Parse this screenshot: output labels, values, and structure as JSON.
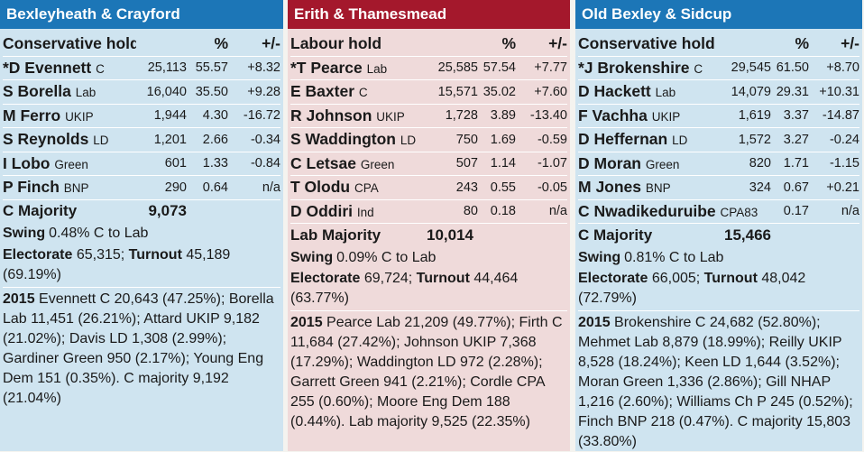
{
  "constituencies": [
    {
      "name": "Bexleyheath & Crayford",
      "hold": "Conservative hold",
      "pct_header": "%",
      "change_header": "+/-",
      "candidates": [
        {
          "name": "*D Evennett",
          "party": "C",
          "votes": "25,113",
          "pct": "55.57",
          "change": "+8.32"
        },
        {
          "name": "S Borella",
          "party": "Lab",
          "votes": "16,040",
          "pct": "35.50",
          "change": "+9.28"
        },
        {
          "name": "M Ferro",
          "party": "UKIP",
          "votes": "1,944",
          "pct": "4.30",
          "change": "-16.72"
        },
        {
          "name": "S Reynolds",
          "party": "LD",
          "votes": "1,201",
          "pct": "2.66",
          "change": "-0.34"
        },
        {
          "name": "I Lobo",
          "party": "Green",
          "votes": "601",
          "pct": "1.33",
          "change": "-0.84"
        },
        {
          "name": "P Finch",
          "party": "BNP",
          "votes": "290",
          "pct": "0.64",
          "change": "n/a"
        }
      ],
      "majority_label": "C Majority",
      "majority_value": "9,073",
      "swing_label": "Swing",
      "swing_value": "0.48% C to Lab",
      "electorate_label": "Electorate",
      "electorate_value": "65,315;",
      "turnout_label": "Turnout",
      "turnout_value": "45,189 (69.19%)",
      "prev_year": "2015",
      "prev_text": "Evennett C 20,643 (47.25%); Borella Lab 11,451 (26.21%); Attard UKIP 9,182 (21.02%); Davis LD 1,308 (2.99%); Gardiner Green 950 (2.17%); Young Eng Dem 151 (0.35%). C majority 9,192 (21.04%)"
    },
    {
      "name": "Erith & Thamesmead",
      "hold": "Labour hold",
      "pct_header": "%",
      "change_header": "+/-",
      "candidates": [
        {
          "name": "*T Pearce",
          "party": "Lab",
          "votes": "25,585",
          "pct": "57.54",
          "change": "+7.77"
        },
        {
          "name": "E Baxter",
          "party": "C",
          "votes": "15,571",
          "pct": "35.02",
          "change": "+7.60"
        },
        {
          "name": "R Johnson",
          "party": "UKIP",
          "votes": "1,728",
          "pct": "3.89",
          "change": "-13.40"
        },
        {
          "name": "S Waddington",
          "party": "LD",
          "votes": "750",
          "pct": "1.69",
          "change": "-0.59"
        },
        {
          "name": "C Letsae",
          "party": "Green",
          "votes": "507",
          "pct": "1.14",
          "change": "-1.07"
        },
        {
          "name": "T Olodu",
          "party": "CPA",
          "votes": "243",
          "pct": "0.55",
          "change": "-0.05"
        },
        {
          "name": "D Oddiri",
          "party": "Ind",
          "votes": "80",
          "pct": "0.18",
          "change": "n/a"
        }
      ],
      "majority_label": "Lab Majority",
      "majority_value": "10,014",
      "swing_label": "Swing",
      "swing_value": "0.09% C to Lab",
      "electorate_label": "Electorate",
      "electorate_value": "69,724;",
      "turnout_label": "Turnout",
      "turnout_value": "44,464 (63.77%)",
      "prev_year": "2015",
      "prev_text": "Pearce Lab 21,209 (49.77%); Firth C 11,684 (27.42%); Johnson UKIP 7,368 (17.29%); Waddington LD 972 (2.28%); Garrett Green 941 (2.21%); Cordle CPA 255 (0.60%); Moore Eng Dem 188 (0.44%). Lab majority 9,525 (22.35%)"
    },
    {
      "name": "Old Bexley & Sidcup",
      "hold": "Conservative hold",
      "pct_header": "%",
      "change_header": "+/-",
      "candidates": [
        {
          "name": "*J Brokenshire",
          "party": "C",
          "votes": "29,545",
          "pct": "61.50",
          "change": "+8.70"
        },
        {
          "name": "D Hackett",
          "party": "Lab",
          "votes": "14,079",
          "pct": "29.31",
          "change": "+10.31"
        },
        {
          "name": "F Vachha",
          "party": "UKIP",
          "votes": "1,619",
          "pct": "3.37",
          "change": "-14.87"
        },
        {
          "name": "D Heffernan",
          "party": "LD",
          "votes": "1,572",
          "pct": "3.27",
          "change": "-0.24"
        },
        {
          "name": "D Moran",
          "party": "Green",
          "votes": "820",
          "pct": "1.71",
          "change": "-1.15"
        },
        {
          "name": "M Jones",
          "party": "BNP",
          "votes": "324",
          "pct": "0.67",
          "change": "+0.21"
        },
        {
          "name": "C Nwadikeduruibe",
          "party": "CPA83",
          "votes": "",
          "pct": "0.17",
          "change": "n/a"
        }
      ],
      "majority_label": "C Majority",
      "majority_value": "15,466",
      "swing_label": "Swing",
      "swing_value": "0.81% C to Lab",
      "electorate_label": "Electorate",
      "electorate_value": "66,005;",
      "turnout_label": "Turnout",
      "turnout_value": "48,042 (72.79%)",
      "prev_year": "2015",
      "prev_text": "Brokenshire C 24,682 (52.80%); Mehmet Lab 8,879 (18.99%); Reilly UKIP 8,528 (18.24%); Keen LD 1,644 (3.52%); Moran Green 1,336 (2.86%); Gill NHAP 1,216 (2.60%); Williams Ch P 245 (0.52%); Finch BNP 218 (0.47%). C majority 15,803 (33.80%)"
    }
  ],
  "colors": {
    "blue_header": "#1c76b7",
    "red_header": "#a4182c",
    "blue_bg": "#cfe4f0",
    "red_bg": "#efdada"
  }
}
